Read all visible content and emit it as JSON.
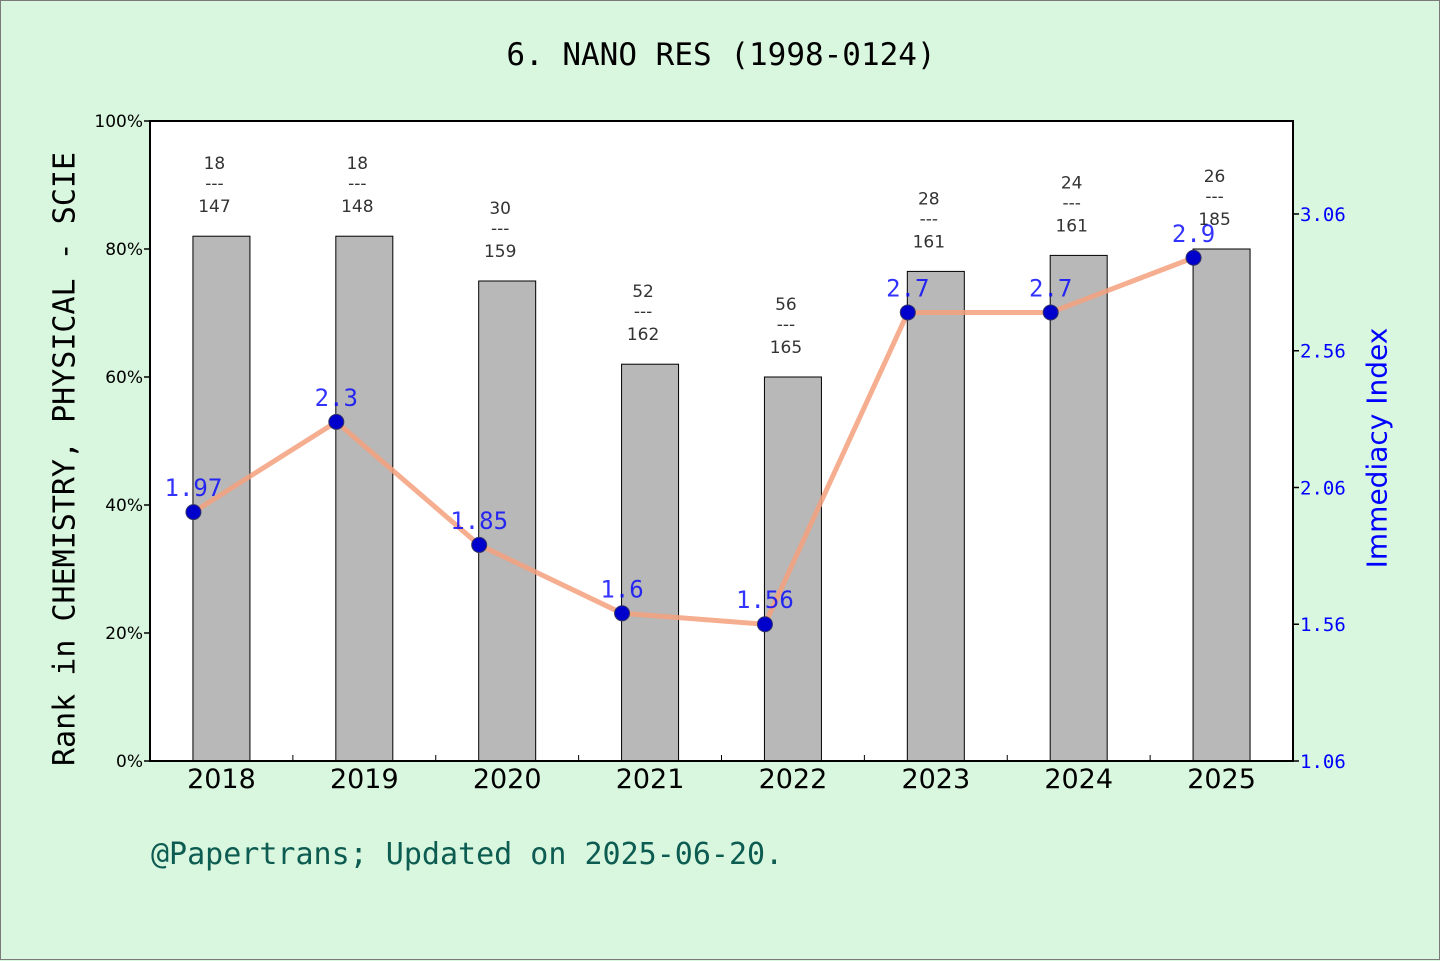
{
  "title": "6. NANO RES (1998-0124)",
  "footer": "@Papertrans; Updated on 2025-06-20.",
  "colors": {
    "background": "#d9f6de",
    "bar_fill": "#b8b8b8",
    "line": "#f4a07c",
    "marker": "#0000cc",
    "right_axis": "#0000ff",
    "footer": "#0d5c52"
  },
  "chart_data": {
    "type": "bar",
    "categories": [
      "2018",
      "2019",
      "2020",
      "2021",
      "2022",
      "2023",
      "2024",
      "2025"
    ],
    "ylabel": "Rank in CHEMISTRY, PHYSICAL - SCIE",
    "ylim": [
      0,
      100
    ],
    "yticks": [
      "0%",
      "20%",
      "40%",
      "60%",
      "80%",
      "100%"
    ],
    "bar_values": [
      82,
      82,
      75,
      62,
      60,
      76.5,
      79,
      80
    ],
    "rank_labels": [
      {
        "rank": "18",
        "total": "147"
      },
      {
        "rank": "18",
        "total": "148"
      },
      {
        "rank": "30",
        "total": "159"
      },
      {
        "rank": "52",
        "total": "162"
      },
      {
        "rank": "56",
        "total": "165"
      },
      {
        "rank": "28",
        "total": "161"
      },
      {
        "rank": "24",
        "total": "161"
      },
      {
        "rank": "26",
        "total": "185"
      }
    ],
    "rank_separator": "---",
    "line_series": {
      "ylabel": "Immediacy Index",
      "values": [
        1.97,
        2.3,
        1.85,
        1.6,
        1.56,
        2.7,
        2.7,
        2.9
      ],
      "labels": [
        "1.97",
        "2.3",
        "1.85",
        "1.6",
        "1.56",
        "2.7",
        "2.7",
        "2.9"
      ],
      "ylim": [
        1.06,
        3.4
      ],
      "yticks": [
        "1.06",
        "1.56",
        "2.06",
        "2.56",
        "3.06"
      ]
    },
    "grid": false
  }
}
